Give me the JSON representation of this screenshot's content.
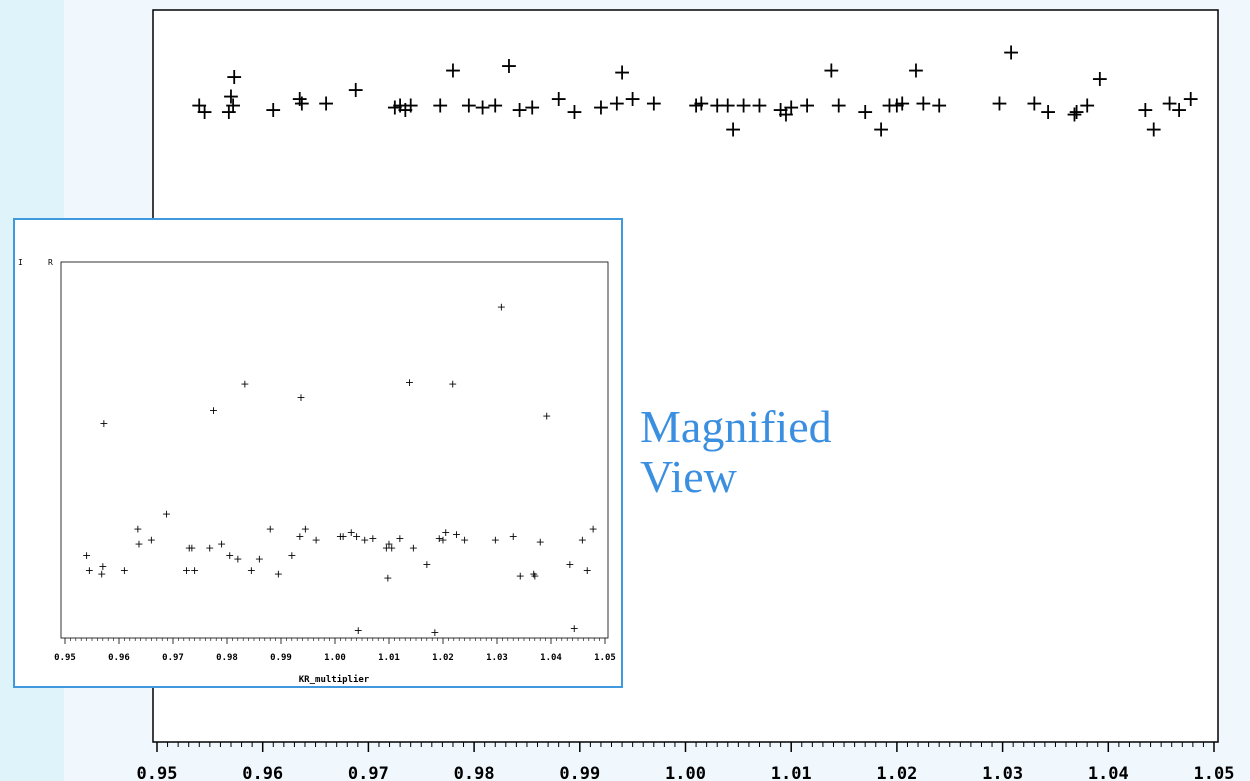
{
  "chart_data": [
    {
      "type": "scatter",
      "marker": "+",
      "xlim": [
        0.95,
        1.05
      ],
      "xticks": [
        "0.95",
        "0.96",
        "0.97",
        "0.98",
        "0.99",
        "1.00",
        "1.01",
        "1.02",
        "1.03",
        "1.04",
        "1.05"
      ],
      "y_labels_shown": false,
      "points": [
        {
          "x": 0.954,
          "y": 0.0
        },
        {
          "x": 0.9545,
          "y": -0.3
        },
        {
          "x": 0.9568,
          "y": -0.3
        },
        {
          "x": 0.957,
          "y": 0.4
        },
        {
          "x": 0.9572,
          "y": 0.0
        },
        {
          "x": 0.9573,
          "y": 1.3
        },
        {
          "x": 0.961,
          "y": -0.2
        },
        {
          "x": 0.9635,
          "y": 0.3
        },
        {
          "x": 0.9637,
          "y": 0.1
        },
        {
          "x": 0.966,
          "y": 0.1
        },
        {
          "x": 0.9688,
          "y": 0.7
        },
        {
          "x": 0.9725,
          "y": -0.1
        },
        {
          "x": 0.973,
          "y": 0.0
        },
        {
          "x": 0.9735,
          "y": -0.2
        },
        {
          "x": 0.974,
          "y": 0.0
        },
        {
          "x": 0.9768,
          "y": 0.0
        },
        {
          "x": 0.978,
          "y": 1.6
        },
        {
          "x": 0.9795,
          "y": 0.0
        },
        {
          "x": 0.9808,
          "y": -0.1
        },
        {
          "x": 0.982,
          "y": 0.0
        },
        {
          "x": 0.9833,
          "y": 1.8
        },
        {
          "x": 0.9843,
          "y": -0.2
        },
        {
          "x": 0.9855,
          "y": -0.1
        },
        {
          "x": 0.988,
          "y": 0.3
        },
        {
          "x": 0.9895,
          "y": -0.3
        },
        {
          "x": 0.992,
          "y": -0.1
        },
        {
          "x": 0.9935,
          "y": 0.1
        },
        {
          "x": 0.994,
          "y": 1.5
        },
        {
          "x": 0.995,
          "y": 0.3
        },
        {
          "x": 0.997,
          "y": 0.1
        },
        {
          "x": 1.001,
          "y": 0.0
        },
        {
          "x": 1.0015,
          "y": 0.1
        },
        {
          "x": 1.003,
          "y": 0.0
        },
        {
          "x": 1.004,
          "y": 0.0
        },
        {
          "x": 1.0045,
          "y": -1.1
        },
        {
          "x": 1.0055,
          "y": 0.0
        },
        {
          "x": 1.007,
          "y": 0.0
        },
        {
          "x": 1.009,
          "y": -0.2
        },
        {
          "x": 1.0095,
          "y": -0.4
        },
        {
          "x": 1.01,
          "y": -0.1
        },
        {
          "x": 1.0115,
          "y": 0.0
        },
        {
          "x": 1.0138,
          "y": 1.6
        },
        {
          "x": 1.0145,
          "y": 0.0
        },
        {
          "x": 1.017,
          "y": -0.3
        },
        {
          "x": 1.0185,
          "y": -1.1
        },
        {
          "x": 1.0193,
          "y": 0.0
        },
        {
          "x": 1.02,
          "y": 0.0
        },
        {
          "x": 1.0205,
          "y": 0.1
        },
        {
          "x": 1.0218,
          "y": 1.6
        },
        {
          "x": 1.0225,
          "y": 0.1
        },
        {
          "x": 1.024,
          "y": 0.0
        },
        {
          "x": 1.0297,
          "y": 0.1
        },
        {
          "x": 1.0308,
          "y": 2.4
        },
        {
          "x": 1.033,
          "y": 0.1
        },
        {
          "x": 1.0343,
          "y": -0.3
        },
        {
          "x": 1.0368,
          "y": -0.4
        },
        {
          "x": 1.037,
          "y": -0.3
        },
        {
          "x": 1.038,
          "y": 0.0
        },
        {
          "x": 1.0392,
          "y": 1.2
        },
        {
          "x": 1.0435,
          "y": -0.2
        },
        {
          "x": 1.0443,
          "y": -1.1
        },
        {
          "x": 1.0458,
          "y": 0.1
        },
        {
          "x": 1.0467,
          "y": -0.2
        },
        {
          "x": 1.0478,
          "y": 0.3
        }
      ]
    },
    {
      "type": "scatter",
      "marker": "+",
      "xlabel": "KR_multiplier",
      "xlim": [
        0.95,
        1.05
      ],
      "xticks": [
        "0.95",
        "0.96",
        "0.97",
        "0.98",
        "0.99",
        "1.00",
        "1.01",
        "1.02",
        "1.03",
        "1.04",
        "1.05"
      ],
      "ylim": [
        -2.2,
        7.8
      ],
      "corner_labels": [
        "I",
        "R"
      ],
      "points": [
        {
          "x": 0.954,
          "y": 0.0
        },
        {
          "x": 0.9545,
          "y": -0.4
        },
        {
          "x": 0.9568,
          "y": -0.5
        },
        {
          "x": 0.957,
          "y": -0.3
        },
        {
          "x": 0.9572,
          "y": 3.5
        },
        {
          "x": 0.961,
          "y": -0.4
        },
        {
          "x": 0.9635,
          "y": 0.7
        },
        {
          "x": 0.9637,
          "y": 0.3
        },
        {
          "x": 0.966,
          "y": 0.4
        },
        {
          "x": 0.9688,
          "y": 1.1
        },
        {
          "x": 0.9725,
          "y": -0.4
        },
        {
          "x": 0.973,
          "y": 0.2
        },
        {
          "x": 0.9735,
          "y": 0.2
        },
        {
          "x": 0.974,
          "y": -0.4
        },
        {
          "x": 0.9768,
          "y": 0.2
        },
        {
          "x": 0.9775,
          "y": 3.85
        },
        {
          "x": 0.979,
          "y": 0.3
        },
        {
          "x": 0.9805,
          "y": 0.0
        },
        {
          "x": 0.982,
          "y": -0.1
        },
        {
          "x": 0.9833,
          "y": 4.55
        },
        {
          "x": 0.9845,
          "y": -0.4
        },
        {
          "x": 0.986,
          "y": -0.1
        },
        {
          "x": 0.988,
          "y": 0.7
        },
        {
          "x": 0.9895,
          "y": -0.5
        },
        {
          "x": 0.992,
          "y": 0.0
        },
        {
          "x": 0.9935,
          "y": 0.5
        },
        {
          "x": 0.9937,
          "y": 4.2
        },
        {
          "x": 0.9945,
          "y": 0.7
        },
        {
          "x": 0.9965,
          "y": 0.4
        },
        {
          "x": 1.001,
          "y": 0.5
        },
        {
          "x": 1.0015,
          "y": 0.5
        },
        {
          "x": 1.003,
          "y": 0.6
        },
        {
          "x": 1.004,
          "y": 0.5
        },
        {
          "x": 1.0043,
          "y": -2.0
        },
        {
          "x": 1.0055,
          "y": 0.4
        },
        {
          "x": 1.007,
          "y": 0.45
        },
        {
          "x": 1.0095,
          "y": 0.2
        },
        {
          "x": 1.0098,
          "y": -0.6
        },
        {
          "x": 1.01,
          "y": 0.3
        },
        {
          "x": 1.0105,
          "y": 0.2
        },
        {
          "x": 1.012,
          "y": 0.45
        },
        {
          "x": 1.0138,
          "y": 4.6
        },
        {
          "x": 1.0145,
          "y": 0.2
        },
        {
          "x": 1.017,
          "y": -0.25
        },
        {
          "x": 1.0185,
          "y": -2.05
        },
        {
          "x": 1.0193,
          "y": 0.45
        },
        {
          "x": 1.02,
          "y": 0.4
        },
        {
          "x": 1.0205,
          "y": 0.6
        },
        {
          "x": 1.0218,
          "y": 4.55
        },
        {
          "x": 1.0225,
          "y": 0.55
        },
        {
          "x": 1.024,
          "y": 0.4
        },
        {
          "x": 1.0297,
          "y": 0.4
        },
        {
          "x": 1.0308,
          "y": 6.6
        },
        {
          "x": 1.033,
          "y": 0.5
        },
        {
          "x": 1.0343,
          "y": -0.55
        },
        {
          "x": 1.0368,
          "y": -0.5
        },
        {
          "x": 1.037,
          "y": -0.55
        },
        {
          "x": 1.038,
          "y": 0.35
        },
        {
          "x": 1.0392,
          "y": 3.7
        },
        {
          "x": 1.0435,
          "y": -0.25
        },
        {
          "x": 1.0443,
          "y": -1.95
        },
        {
          "x": 1.0458,
          "y": 0.4
        },
        {
          "x": 1.0467,
          "y": -0.4
        },
        {
          "x": 1.0478,
          "y": 0.7
        }
      ]
    }
  ],
  "callout": {
    "line1": "Magnified",
    "line2": "View",
    "color": "#3b8fe0"
  },
  "colors": {
    "background": "#f0f8fe",
    "left_band": "#dff3fb",
    "inset_border": "#3f99df"
  }
}
